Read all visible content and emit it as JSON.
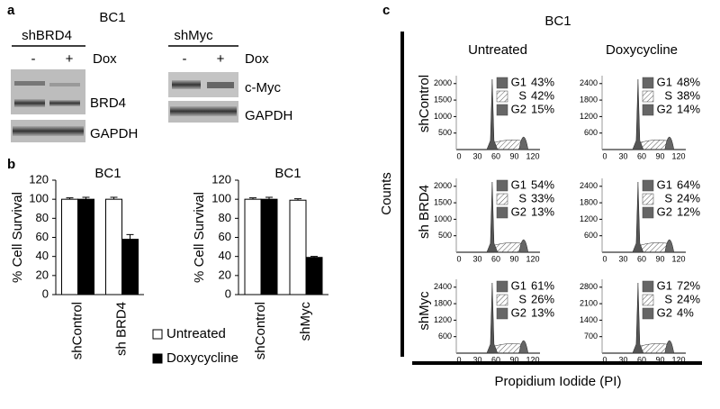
{
  "panel_labels": {
    "a": "a",
    "b": "b",
    "c": "c"
  },
  "blots": {
    "title": "BC1",
    "left": {
      "label": "shBRD4",
      "lanes": [
        "-",
        "+"
      ],
      "treatment": "Dox",
      "bands": [
        "BRD4",
        "GAPDH"
      ]
    },
    "right": {
      "label": "shMyc",
      "lanes": [
        "-",
        "+"
      ],
      "treatment": "Dox",
      "bands": [
        "c-Myc",
        "GAPDH"
      ]
    }
  },
  "chart_data": [
    {
      "type": "bar",
      "title": "BC1",
      "ylabel": "% Cell Survival",
      "categories": [
        "shControl",
        "sh BRD4"
      ],
      "series": [
        {
          "name": "Untreated",
          "color": "#ffffff",
          "values": [
            100,
            100
          ],
          "errors": [
            1.5,
            2
          ]
        },
        {
          "name": "Doxycycline",
          "color": "#000000",
          "values": [
            100,
            58
          ],
          "errors": [
            2,
            5
          ]
        }
      ],
      "ylim": [
        0,
        120
      ],
      "yticks": [
        0,
        20,
        40,
        60,
        80,
        100,
        120
      ]
    },
    {
      "type": "bar",
      "title": "BC1",
      "ylabel": "% Cell Survival",
      "categories": [
        "shControl",
        "shMyc"
      ],
      "series": [
        {
          "name": "Untreated",
          "color": "#ffffff",
          "values": [
            100,
            99
          ],
          "errors": [
            1.5,
            1.5
          ]
        },
        {
          "name": "Doxycycline",
          "color": "#000000",
          "values": [
            100,
            39
          ],
          "errors": [
            2,
            1
          ]
        }
      ],
      "ylim": [
        0,
        120
      ],
      "yticks": [
        0,
        20,
        40,
        60,
        80,
        100,
        120
      ]
    }
  ],
  "flow": {
    "title": "BC1",
    "column_titles": [
      "Untreated",
      "Doxycycline"
    ],
    "row_labels": [
      "shControl",
      "sh BRD4",
      "shMyc"
    ],
    "ylabel": "Counts",
    "xlabel": "Propidium Iodide (PI)",
    "xticks": [
      0,
      30,
      60,
      90,
      120
    ],
    "panels": [
      [
        {
          "yticks": [
            500,
            1000,
            1500,
            2000
          ],
          "phases": [
            {
              "name": "G1",
              "pct": "43%"
            },
            {
              "name": "S",
              "pct": "42%"
            },
            {
              "name": "G2",
              "pct": "15%"
            }
          ]
        },
        {
          "yticks": [
            600,
            1200,
            1800,
            2400
          ],
          "phases": [
            {
              "name": "G1",
              "pct": "48%"
            },
            {
              "name": "S",
              "pct": "38%"
            },
            {
              "name": "G2",
              "pct": "14%"
            }
          ]
        }
      ],
      [
        {
          "yticks": [
            500,
            1000,
            1500,
            2000
          ],
          "phases": [
            {
              "name": "G1",
              "pct": "54%"
            },
            {
              "name": "S",
              "pct": "33%"
            },
            {
              "name": "G2",
              "pct": "13%"
            }
          ]
        },
        {
          "yticks": [
            600,
            1200,
            1800,
            2400
          ],
          "phases": [
            {
              "name": "G1",
              "pct": "64%"
            },
            {
              "name": "S",
              "pct": "24%"
            },
            {
              "name": "G2",
              "pct": "12%"
            }
          ]
        }
      ],
      [
        {
          "yticks": [
            600,
            1200,
            1800,
            2400
          ],
          "phases": [
            {
              "name": "G1",
              "pct": "61%"
            },
            {
              "name": "S",
              "pct": "26%"
            },
            {
              "name": "G2",
              "pct": "13%"
            }
          ]
        },
        {
          "yticks": [
            700,
            1400,
            2100,
            2800
          ],
          "phases": [
            {
              "name": "G1",
              "pct": "72%"
            },
            {
              "name": "S",
              "pct": "24%"
            },
            {
              "name": "G2",
              "pct": "4%"
            }
          ]
        }
      ]
    ]
  }
}
